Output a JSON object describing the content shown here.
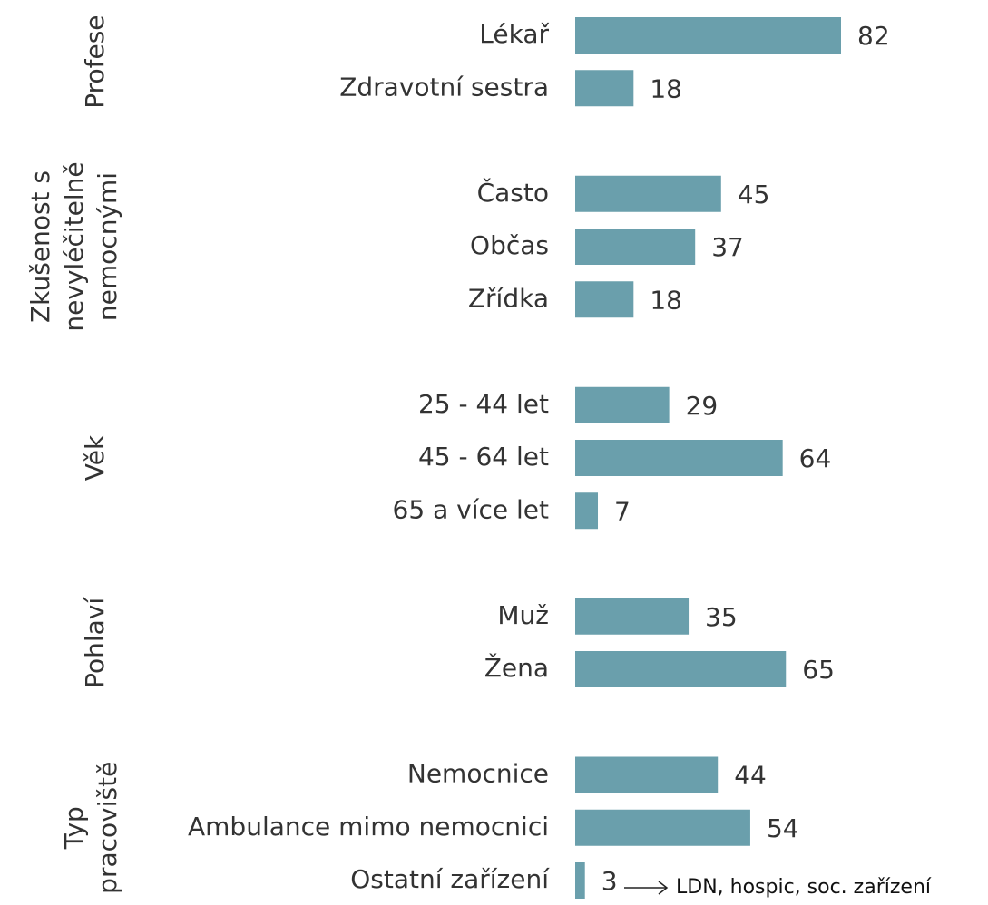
{
  "chart_data": {
    "type": "bar",
    "orientation": "horizontal",
    "color": "#6a9fac",
    "groups": [
      {
        "name": "Profese",
        "categories": [
          "Lékař",
          "Zdravotní sestra"
        ],
        "values": [
          82,
          18
        ]
      },
      {
        "name": "Zkušenost s nevyléčitelně nemocnými",
        "categories": [
          "Často",
          "Občas",
          "Zřídka"
        ],
        "values": [
          45,
          37,
          18
        ]
      },
      {
        "name": "Věk",
        "categories": [
          "25 - 44 let",
          "45 - 64 let",
          "65 a více let"
        ],
        "values": [
          29,
          64,
          7
        ]
      },
      {
        "name": "Pohlaví",
        "categories": [
          "Muž",
          "Žena"
        ],
        "values": [
          35,
          65
        ]
      },
      {
        "name": "Typ pracoviště",
        "categories": [
          "Nemocnice",
          "Ambulance mimo nemocnici",
          "Ostatní zařízení"
        ],
        "values": [
          44,
          54,
          3
        ]
      }
    ],
    "annotation": "LDN, hospic, soc. zařízení"
  }
}
